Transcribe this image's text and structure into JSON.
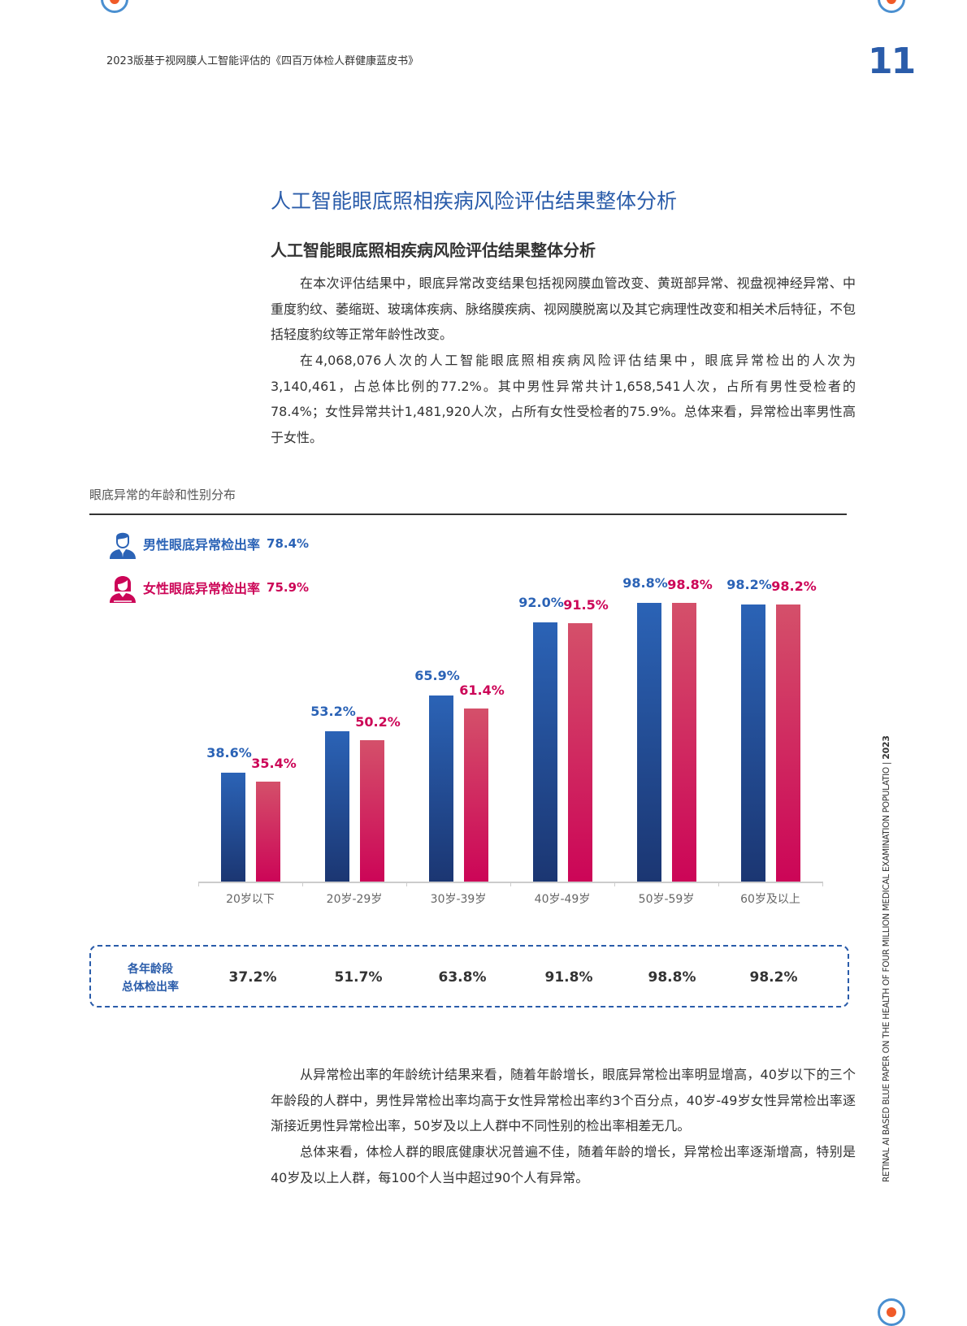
{
  "header": {
    "title": "2023版基于视网膜人工智能评估的《四百万体检人群健康蓝皮书》",
    "page_number": "11"
  },
  "side_text": {
    "english": "RETINAL AI BASED BLUE PAPER ON THE HEALTH OF FOUR MILLION MEDICAL EXAMINATION POPULATIO",
    "year": "2023"
  },
  "section_title": "人工智能眼底照相疾病风险评估结果整体分析",
  "subsection_title": "人工智能眼底照相疾病风险评估结果整体分析",
  "paragraphs_top": [
    "在本次评估结果中，眼底异常改变结果包括视网膜血管改变、黄斑部异常、视盘视神经异常、中重度豹纹、萎缩斑、玻璃体疾病、脉络膜疾病、视网膜脱离以及其它病理性改变和相关术后特征，不包括轻度豹纹等正常年龄性改变。",
    "在4,068,076人次的人工智能眼底照相疾病风险评估结果中，眼底异常检出的人次为3,140,461，占总体比例的77.2%。其中男性异常共计1,658,541人次，占所有男性受检者的78.4%；女性异常共计1,481,920人次，占所有女性受检者的75.9%。总体来看，异常检出率男性高于女性。"
  ],
  "chart_data": {
    "type": "bar",
    "title": "眼底异常的年龄和性别分布",
    "categories": [
      "20岁以下",
      "20岁-29岁",
      "30岁-39岁",
      "40岁-49岁",
      "50岁-59岁",
      "60岁及以上"
    ],
    "series": [
      {
        "name": "男性眼底异常检出率",
        "overall": "78.4%",
        "color": "#2b63b6",
        "values": [
          38.6,
          53.2,
          65.9,
          92.0,
          98.8,
          98.2
        ],
        "labels": [
          "38.6%",
          "53.2%",
          "65.9%",
          "92.0%",
          "98.8%",
          "98.2%"
        ]
      },
      {
        "name": "女性眼底异常检出率",
        "overall": "75.9%",
        "color": "#cc0557",
        "values": [
          35.4,
          50.2,
          61.4,
          91.5,
          98.8,
          98.2
        ],
        "labels": [
          "35.4%",
          "50.2%",
          "61.4%",
          "91.5%",
          "98.8%",
          "98.2%"
        ]
      }
    ],
    "ylim": [
      0,
      100
    ],
    "grid": false,
    "legend": "top-left"
  },
  "summary": {
    "label_line1": "各年龄段",
    "label_line2": "总体检出率",
    "values": [
      "37.2%",
      "51.7%",
      "63.8%",
      "91.8%",
      "98.8%",
      "98.2%"
    ]
  },
  "paragraphs_bottom": [
    "从异常检出率的年龄统计结果来看，随着年龄增长，眼底异常检出率明显增高，40岁以下的三个年龄段的人群中，男性异常检出率均高于女性异常检出率约3个百分点，40岁-49岁女性异常检出率逐渐接近男性异常检出率，50岁及以上人群中不同性别的检出率相差无几。",
    "总体来看，体检人群的眼底健康状况普遍不佳，随着年龄的增长，异常检出率逐渐增高，特别是40岁及以上人群，每100个人当中超过90个人有异常。"
  ]
}
